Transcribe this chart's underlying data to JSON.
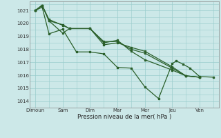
{
  "bg_color": "#cce8e8",
  "grid_color": "#99cccc",
  "line_color": "#2a5f2a",
  "xlabel": "Pression niveau de la mer( hPa )",
  "xtick_labels": [
    "Dimoun",
    "Sam",
    "Dim",
    "Mar",
    "Mer",
    "Jeu",
    "Ven"
  ],
  "ytick_values": [
    1014,
    1015,
    1016,
    1017,
    1018,
    1019,
    1020,
    1021
  ],
  "ylim": [
    1013.5,
    1021.7
  ],
  "series": [
    {
      "x": [
        0.0,
        0.25,
        0.5,
        1.0,
        1.25,
        2.0,
        2.5,
        3.0,
        3.5,
        4.0,
        5.0,
        5.5,
        6.0
      ],
      "y": [
        1021.0,
        1021.4,
        1020.3,
        1019.85,
        1019.6,
        1019.6,
        1018.35,
        1018.5,
        1018.15,
        1017.85,
        1016.65,
        1015.95,
        1015.85
      ]
    },
    {
      "x": [
        0.0,
        0.25,
        0.5,
        1.0,
        1.25,
        2.0,
        2.5,
        3.0,
        3.5,
        4.0,
        5.0,
        5.5,
        6.0
      ],
      "y": [
        1021.0,
        1021.4,
        1020.2,
        1019.9,
        1019.6,
        1019.6,
        1018.6,
        1018.6,
        1018.0,
        1017.7,
        1016.55,
        1015.95,
        1015.85
      ]
    },
    {
      "x": [
        0.0,
        0.25,
        0.5,
        1.0,
        1.25,
        2.0,
        2.5,
        3.0,
        3.5,
        4.0,
        5.0,
        5.5,
        6.0
      ],
      "y": [
        1021.0,
        1021.4,
        1020.2,
        1019.25,
        1019.6,
        1019.6,
        1018.5,
        1018.7,
        1017.85,
        1017.2,
        1016.4,
        1015.95,
        1015.85
      ]
    },
    {
      "x": [
        0.0,
        0.25,
        0.5,
        1.0,
        1.5,
        2.0,
        2.5,
        3.0,
        3.5,
        4.0,
        4.5,
        5.0,
        5.15,
        5.4,
        5.65,
        6.0,
        6.5
      ],
      "y": [
        1021.0,
        1021.25,
        1019.2,
        1019.55,
        1017.8,
        1017.8,
        1017.65,
        1016.6,
        1016.55,
        1015.1,
        1014.2,
        1016.9,
        1017.1,
        1016.85,
        1016.55,
        1015.9,
        1015.85
      ]
    }
  ],
  "marker_size": 2.0,
  "linewidth": 0.9,
  "xtick_positions": [
    0,
    1,
    2,
    3,
    4,
    5,
    6
  ],
  "xlim": [
    -0.2,
    6.7
  ]
}
